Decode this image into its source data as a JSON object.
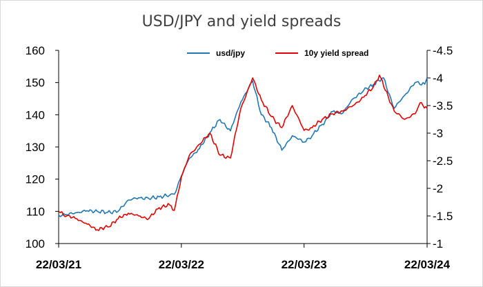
{
  "chart_data": {
    "type": "line",
    "title": "USD/JPY and yield spreads",
    "x_ticks": [
      "22/03/21",
      "22/03/22",
      "22/03/23",
      "22/03/24"
    ],
    "y_left": {
      "min": 100,
      "max": 160,
      "ticks": [
        "100",
        "110",
        "120",
        "130",
        "140",
        "150",
        "160"
      ]
    },
    "y_right": {
      "min": -1.0,
      "max": -4.5,
      "reversed": true,
      "ticks": [
        "-1",
        "-1.5",
        "-2",
        "-2.5",
        "-3",
        "-3.5",
        "-4",
        "-4.5"
      ]
    },
    "legend": {
      "position": "top"
    },
    "series": [
      {
        "name": "usd/jpy",
        "axis": "left",
        "color": "#1f77b4",
        "points": [
          [
            "2021-03-22",
            108.9
          ],
          [
            "2021-04-15",
            109.0
          ],
          [
            "2021-05-15",
            109.6
          ],
          [
            "2021-06-15",
            110.2
          ],
          [
            "2021-07-15",
            110.0
          ],
          [
            "2021-08-15",
            109.7
          ],
          [
            "2021-09-15",
            110.0
          ],
          [
            "2021-10-15",
            113.5
          ],
          [
            "2021-11-15",
            114.2
          ],
          [
            "2021-12-15",
            114.0
          ],
          [
            "2022-01-15",
            114.5
          ],
          [
            "2022-02-15",
            115.0
          ],
          [
            "2022-03-01",
            115.3
          ],
          [
            "2022-03-22",
            121.0
          ],
          [
            "2022-04-15",
            126.5
          ],
          [
            "2022-05-15",
            129.5
          ],
          [
            "2022-06-15",
            134.5
          ],
          [
            "2022-07-15",
            138.5
          ],
          [
            "2022-08-15",
            135.0
          ],
          [
            "2022-09-15",
            144.0
          ],
          [
            "2022-10-20",
            150.5
          ],
          [
            "2022-11-15",
            140.0
          ],
          [
            "2022-12-15",
            136.0
          ],
          [
            "2023-01-15",
            129.0
          ],
          [
            "2023-02-15",
            133.5
          ],
          [
            "2023-03-22",
            131.5
          ],
          [
            "2023-04-15",
            133.5
          ],
          [
            "2023-05-15",
            137.0
          ],
          [
            "2023-06-15",
            141.0
          ],
          [
            "2023-07-15",
            140.5
          ],
          [
            "2023-08-15",
            145.0
          ],
          [
            "2023-09-15",
            147.5
          ],
          [
            "2023-10-15",
            149.5
          ],
          [
            "2023-11-13",
            151.5
          ],
          [
            "2023-12-15",
            142.0
          ],
          [
            "2024-01-15",
            146.0
          ],
          [
            "2024-02-15",
            150.0
          ],
          [
            "2024-03-15",
            149.5
          ],
          [
            "2024-03-22",
            151.5
          ]
        ]
      },
      {
        "name": "10y yield spread",
        "axis": "right",
        "color": "#e00000",
        "points": [
          [
            "2021-03-22",
            -1.58
          ],
          [
            "2021-04-15",
            -1.5
          ],
          [
            "2021-05-15",
            -1.45
          ],
          [
            "2021-06-15",
            -1.35
          ],
          [
            "2021-07-15",
            -1.25
          ],
          [
            "2021-08-15",
            -1.3
          ],
          [
            "2021-09-15",
            -1.45
          ],
          [
            "2021-10-15",
            -1.55
          ],
          [
            "2021-11-15",
            -1.5
          ],
          [
            "2021-12-15",
            -1.45
          ],
          [
            "2022-01-15",
            -1.65
          ],
          [
            "2022-02-15",
            -1.7
          ],
          [
            "2022-03-01",
            -1.6
          ],
          [
            "2022-03-22",
            -2.2
          ],
          [
            "2022-04-15",
            -2.6
          ],
          [
            "2022-05-15",
            -2.8
          ],
          [
            "2022-06-15",
            -3.0
          ],
          [
            "2022-07-15",
            -2.6
          ],
          [
            "2022-08-15",
            -2.55
          ],
          [
            "2022-09-15",
            -3.45
          ],
          [
            "2022-10-20",
            -4.0
          ],
          [
            "2022-11-15",
            -3.6
          ],
          [
            "2022-12-15",
            -3.3
          ],
          [
            "2023-01-15",
            -3.1
          ],
          [
            "2023-02-15",
            -3.5
          ],
          [
            "2023-03-22",
            -3.05
          ],
          [
            "2023-04-15",
            -3.1
          ],
          [
            "2023-05-15",
            -3.25
          ],
          [
            "2023-06-15",
            -3.35
          ],
          [
            "2023-07-15",
            -3.4
          ],
          [
            "2023-08-15",
            -3.5
          ],
          [
            "2023-09-15",
            -3.65
          ],
          [
            "2023-10-15",
            -3.85
          ],
          [
            "2023-11-01",
            -4.05
          ],
          [
            "2023-12-15",
            -3.4
          ],
          [
            "2024-01-15",
            -3.25
          ],
          [
            "2024-02-15",
            -3.35
          ],
          [
            "2024-03-01",
            -3.55
          ],
          [
            "2024-03-22",
            -3.45
          ]
        ]
      }
    ]
  }
}
